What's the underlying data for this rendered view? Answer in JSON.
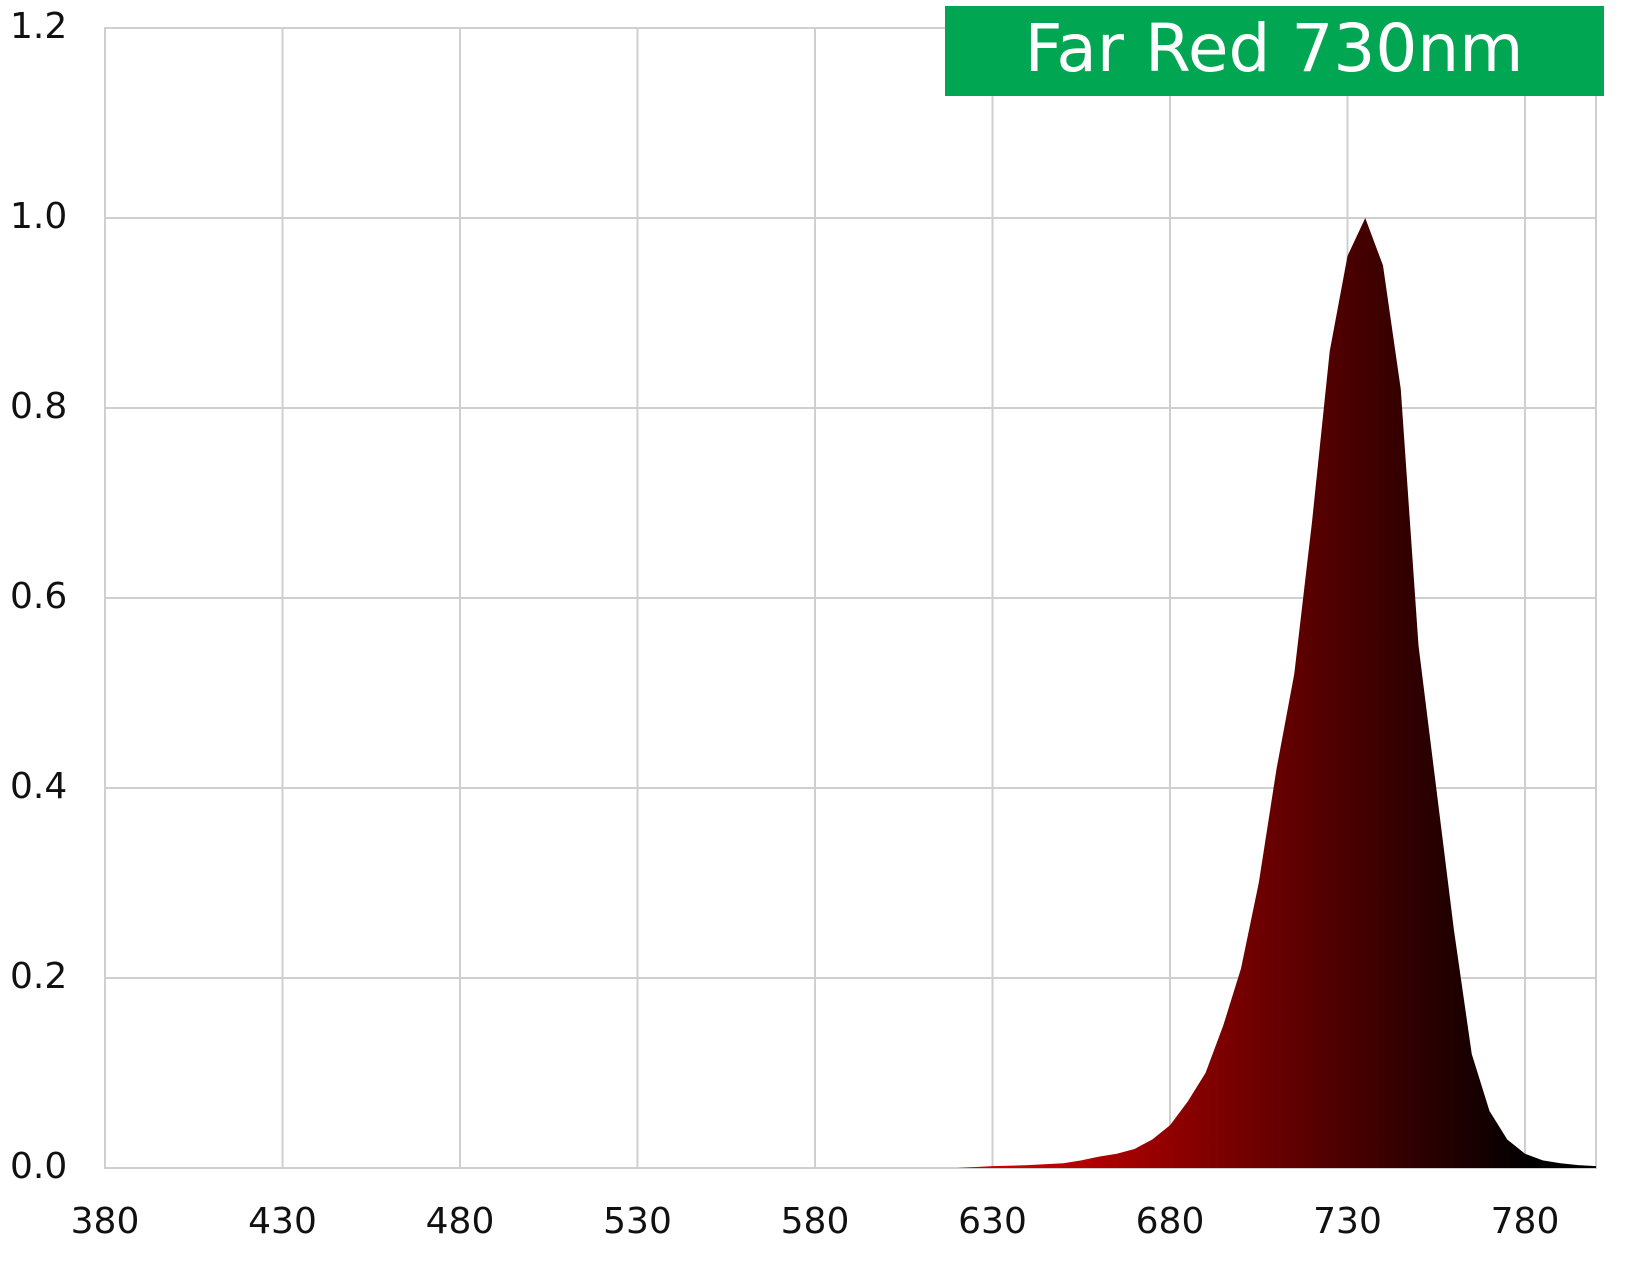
{
  "chart_data": {
    "type": "area",
    "title": "Far Red 730nm",
    "x": [
      620,
      630,
      640,
      650,
      655,
      660,
      665,
      670,
      675,
      680,
      685,
      690,
      695,
      700,
      705,
      710,
      715,
      720,
      725,
      730,
      735,
      740,
      745,
      750,
      755,
      760,
      765,
      770,
      775,
      780,
      785,
      790,
      795,
      800
    ],
    "values": [
      0,
      0.002,
      0.003,
      0.005,
      0.008,
      0.012,
      0.015,
      0.02,
      0.03,
      0.045,
      0.07,
      0.1,
      0.15,
      0.21,
      0.3,
      0.42,
      0.52,
      0.68,
      0.86,
      0.96,
      1.0,
      0.95,
      0.82,
      0.55,
      0.4,
      0.25,
      0.12,
      0.06,
      0.03,
      0.015,
      0.008,
      0.005,
      0.003,
      0.002
    ],
    "color_start": "#cc0000",
    "color_end": "#000000",
    "title_color": "#00a651",
    "xlim": [
      380,
      800
    ],
    "xticks": [
      380,
      430,
      480,
      530,
      580,
      630,
      680,
      730,
      780
    ],
    "ylim": [
      0,
      1.2
    ],
    "yticks": [
      {
        "value": 0,
        "label": "0.0"
      },
      0.2,
      0.4,
      0.6,
      0.8,
      {
        "value": 1,
        "label": "1.0"
      },
      1.2
    ],
    "grid": true
  }
}
